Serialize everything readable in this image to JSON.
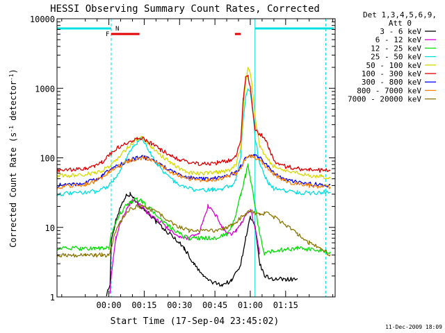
{
  "chart_data": {
    "type": "line",
    "title": "HESSI Observing Summary Count Rates, Corrected",
    "xlabel": "Start Time (17-Sep-04 23:45:02)",
    "ylabel_main": "Corrected Count Rate (s",
    "ylabel_sup1": "-1",
    "ylabel_mid": " detector",
    "ylabel_sup2": "-1",
    "ylabel_end": ")",
    "yscale": "log",
    "ylim": [
      1,
      10000
    ],
    "xlim_minutes": [
      -22,
      96
    ],
    "x_ticks": [
      {
        "label": "00:00",
        "minute": 0
      },
      {
        "label": "00:15",
        "minute": 15
      },
      {
        "label": "00:30",
        "minute": 30
      },
      {
        "label": "00:45",
        "minute": 45
      },
      {
        "label": "01:00",
        "minute": 60
      },
      {
        "label": "01:15",
        "minute": 75
      }
    ],
    "y_ticks": [
      {
        "label": "1",
        "value": 1
      },
      {
        "label": "10",
        "value": 10
      },
      {
        "label": "100",
        "value": 100
      },
      {
        "label": "1000",
        "value": 1000
      },
      {
        "label": "10000",
        "value": 10000
      }
    ],
    "legend_header_1": "Det 1,3,4,5,6,9,",
    "legend_header_2": "Att 0",
    "legend_placement": "right",
    "timestamp": "11-Dec-2009 18:09",
    "flag_labels": {
      "F": "F",
      "N": "N"
    },
    "series": [
      {
        "name": "3 - 6 keV",
        "color": "#000000",
        "x": [
          -22,
          -4,
          -1,
          0.5,
          1,
          3,
          5,
          7,
          9,
          11,
          13,
          15,
          17,
          20,
          24,
          28,
          32,
          36,
          40,
          44,
          48,
          52,
          56,
          58,
          60,
          62,
          64,
          66,
          70,
          75,
          80,
          84
        ],
        "y": [
          null,
          null,
          1.1,
          1.5,
          6,
          13,
          20,
          28,
          30,
          25,
          21,
          18,
          16,
          12,
          9,
          7,
          5,
          3,
          2,
          1.6,
          1.5,
          1.7,
          3,
          7,
          14,
          10,
          3,
          2,
          1.8,
          1.8,
          1.8,
          null
        ]
      },
      {
        "name": "6 - 12 keV",
        "color": "#d600d6",
        "x": [
          -22,
          -4,
          -1,
          0.5,
          1,
          3,
          5,
          8,
          10,
          12,
          14,
          16,
          18,
          22,
          26,
          30,
          34,
          38,
          40,
          42,
          44,
          46,
          48,
          50,
          52,
          54,
          56,
          58,
          60,
          62,
          64,
          65
        ],
        "y": [
          null,
          null,
          null,
          1.2,
          2,
          7,
          12,
          20,
          24,
          22,
          20,
          17,
          14,
          12,
          9,
          7,
          7,
          8,
          12,
          20,
          17,
          14,
          10,
          8,
          8,
          9,
          11,
          15,
          18,
          10,
          4,
          null
        ]
      },
      {
        "name": "12 - 25 keV",
        "color": "#00e000",
        "x": [
          -22,
          -18,
          -12,
          -6,
          -3,
          -1,
          0,
          1,
          3,
          5,
          8,
          10,
          12,
          14,
          16,
          18,
          22,
          26,
          30,
          34,
          38,
          42,
          46,
          50,
          52,
          54,
          56,
          58,
          59,
          60,
          61,
          62,
          64,
          66,
          70,
          75,
          80,
          85,
          90,
          94
        ],
        "y": [
          5,
          5,
          5,
          5,
          5,
          5,
          5,
          8,
          12,
          16,
          22,
          24,
          25,
          24,
          20,
          18,
          13,
          10,
          8,
          7,
          7,
          7,
          7,
          8,
          10,
          16,
          30,
          55,
          80,
          50,
          35,
          20,
          8,
          4.2,
          4.6,
          4.8,
          5,
          4.8,
          4.5,
          4.3
        ]
      },
      {
        "name": "25 - 50 keV",
        "color": "#00e0e0",
        "x": [
          -22,
          -15,
          -10,
          -6,
          -3,
          -1,
          0,
          2,
          4,
          6,
          8,
          10,
          12,
          14,
          16,
          18,
          20,
          24,
          28,
          32,
          36,
          40,
          44,
          48,
          52,
          54,
          56,
          57,
          58,
          59,
          60,
          61,
          62,
          64,
          66,
          68,
          70,
          75,
          80,
          85,
          90,
          94
        ],
        "y": [
          30,
          31,
          32,
          33,
          36,
          38,
          40,
          48,
          60,
          80,
          110,
          140,
          165,
          190,
          150,
          110,
          85,
          60,
          45,
          38,
          35,
          34,
          35,
          36,
          40,
          50,
          110,
          350,
          700,
          1000,
          900,
          500,
          200,
          85,
          55,
          42,
          36,
          34,
          32,
          31,
          32,
          33
        ]
      },
      {
        "name": "50 - 100 keV",
        "color": "#d8d800",
        "x": [
          -22,
          -15,
          -10,
          -6,
          -3,
          0,
          4,
          8,
          12,
          14,
          16,
          18,
          22,
          26,
          30,
          34,
          38,
          42,
          46,
          50,
          52,
          54,
          56,
          57,
          58,
          59,
          60,
          61,
          62,
          64,
          66,
          68,
          70,
          75,
          80,
          85,
          90,
          94
        ],
        "y": [
          55,
          56,
          58,
          60,
          65,
          75,
          100,
          140,
          185,
          195,
          170,
          140,
          110,
          85,
          70,
          62,
          60,
          60,
          62,
          65,
          70,
          80,
          140,
          500,
          1200,
          2100,
          1700,
          900,
          400,
          150,
          110,
          90,
          75,
          65,
          60,
          56,
          54,
          52
        ]
      },
      {
        "name": "100 - 300 keV",
        "color": "#e00000",
        "x": [
          -22,
          -15,
          -10,
          -6,
          -3,
          0,
          4,
          8,
          12,
          14,
          16,
          18,
          22,
          26,
          30,
          34,
          38,
          42,
          46,
          50,
          52,
          54,
          56,
          57,
          58,
          59,
          60,
          61,
          62,
          64,
          66,
          68,
          70,
          75,
          80,
          85,
          90,
          94
        ],
        "y": [
          65,
          67,
          70,
          75,
          85,
          110,
          140,
          165,
          185,
          190,
          175,
          160,
          130,
          110,
          95,
          85,
          82,
          82,
          85,
          90,
          95,
          105,
          190,
          700,
          1400,
          1500,
          1000,
          500,
          260,
          220,
          200,
          140,
          90,
          75,
          70,
          68,
          66,
          65
        ]
      },
      {
        "name": "300 - 800 keV",
        "color": "#0000ff",
        "x": [
          -22,
          -15,
          -10,
          -6,
          -3,
          0,
          4,
          8,
          12,
          14,
          16,
          18,
          22,
          26,
          30,
          34,
          38,
          42,
          46,
          50,
          54,
          56,
          58,
          60,
          62,
          64,
          66,
          70,
          75,
          80,
          85,
          90,
          94
        ],
        "y": [
          40,
          42,
          44,
          48,
          55,
          65,
          78,
          90,
          100,
          102,
          100,
          95,
          80,
          66,
          57,
          52,
          50,
          50,
          52,
          56,
          62,
          75,
          100,
          110,
          105,
          100,
          85,
          60,
          48,
          44,
          42,
          41,
          40
        ]
      },
      {
        "name": "800 - 7000 keV",
        "color": "#ff8000",
        "x": [
          -22,
          -15,
          -10,
          -6,
          -3,
          0,
          4,
          8,
          12,
          14,
          16,
          18,
          22,
          26,
          30,
          34,
          38,
          42,
          46,
          50,
          54,
          56,
          58,
          60,
          62,
          64,
          66,
          70,
          75,
          80,
          85,
          90,
          94
        ],
        "y": [
          38,
          40,
          42,
          46,
          52,
          62,
          75,
          88,
          98,
          100,
          98,
          92,
          78,
          64,
          55,
          50,
          48,
          48,
          50,
          54,
          60,
          72,
          95,
          105,
          100,
          95,
          80,
          58,
          46,
          42,
          40,
          39,
          38
        ]
      },
      {
        "name": "7000 - 20000 keV",
        "color": "#8b7500",
        "x": [
          -22,
          -15,
          -10,
          -6,
          -3,
          0,
          3,
          6,
          9,
          12,
          14,
          16,
          18,
          22,
          26,
          30,
          34,
          38,
          42,
          46,
          50,
          52,
          54,
          56,
          58,
          60,
          62,
          64,
          66,
          68,
          70,
          75,
          80,
          85,
          90,
          94
        ],
        "y": [
          4,
          4,
          4,
          4,
          4,
          4,
          9,
          14,
          18,
          20,
          20,
          19,
          18,
          15,
          12,
          10,
          9,
          9,
          9,
          9,
          10,
          11,
          12,
          14,
          16,
          17,
          16,
          15,
          16,
          16,
          14,
          11,
          8,
          6,
          5,
          4
        ]
      }
    ]
  }
}
